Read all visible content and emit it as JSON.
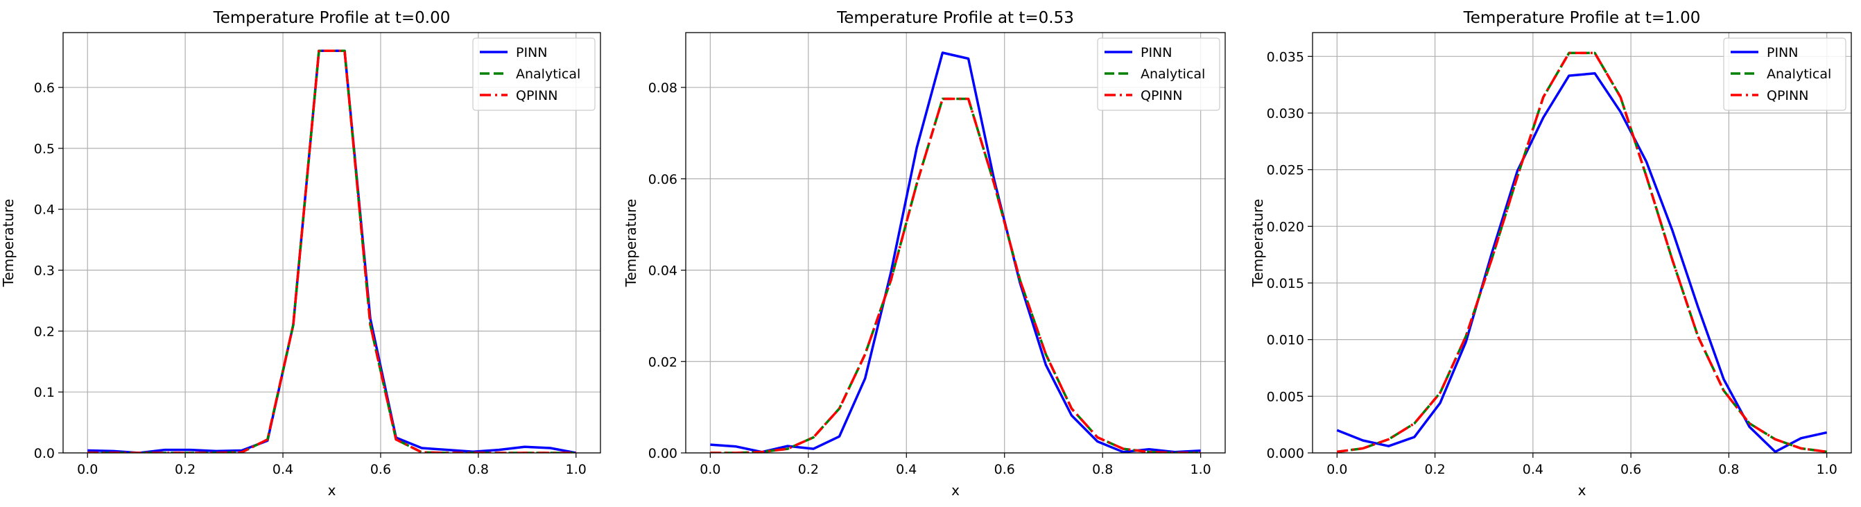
{
  "colors": {
    "PINN": "#0000ff",
    "Analytical": "#008000",
    "QPINN": "#ff0000",
    "grid": "#b0b0b0"
  },
  "chart_data": [
    {
      "type": "line",
      "title": "Temperature Profile at t=0.00",
      "xlabel": "x",
      "ylabel": "Temperature",
      "xlim": [
        -0.05,
        1.05
      ],
      "ylim": [
        0,
        0.69
      ],
      "xticks": [
        "0.0",
        "0.2",
        "0.4",
        "0.6",
        "0.8",
        "1.0"
      ],
      "yticks": [
        "0.0",
        "0.1",
        "0.2",
        "0.3",
        "0.4",
        "0.5",
        "0.6"
      ],
      "grid": true,
      "legend": "top-right",
      "x": [
        0.0,
        0.0526,
        0.1053,
        0.1579,
        0.2105,
        0.2632,
        0.3158,
        0.3684,
        0.4211,
        0.4737,
        0.5263,
        0.5789,
        0.6316,
        0.6842,
        0.7368,
        0.7895,
        0.8421,
        0.8947,
        0.9474,
        1.0
      ],
      "series": [
        {
          "name": "PINN",
          "style": "solid",
          "values": [
            0.004,
            0.003,
            0.0,
            0.005,
            0.005,
            0.003,
            0.004,
            0.02,
            0.21,
            0.66,
            0.66,
            0.22,
            0.025,
            0.008,
            0.005,
            0.002,
            0.005,
            0.01,
            0.008,
            0.0
          ]
        },
        {
          "name": "Analytical",
          "style": "dashed",
          "values": [
            0.0,
            0.0,
            0.0,
            0.0,
            0.0,
            0.0,
            0.001,
            0.022,
            0.21,
            0.66,
            0.66,
            0.21,
            0.022,
            0.001,
            0.0,
            0.0,
            0.0,
            0.0,
            0.0,
            0.0
          ]
        },
        {
          "name": "QPINN",
          "style": "dashdot",
          "values": [
            0.0,
            0.0,
            0.0,
            0.0,
            0.0,
            0.0,
            0.001,
            0.022,
            0.21,
            0.66,
            0.66,
            0.21,
            0.022,
            0.001,
            0.0,
            0.0,
            0.0,
            0.0,
            0.0,
            0.0
          ]
        }
      ]
    },
    {
      "type": "line",
      "title": "Temperature Profile at t=0.53",
      "xlabel": "x",
      "ylabel": "Temperature",
      "xlim": [
        -0.05,
        1.05
      ],
      "ylim": [
        0,
        0.092
      ],
      "xticks": [
        "0.0",
        "0.2",
        "0.4",
        "0.6",
        "0.8",
        "1.0"
      ],
      "yticks": [
        "0.00",
        "0.02",
        "0.04",
        "0.06",
        "0.08"
      ],
      "grid": true,
      "legend": "top-right",
      "x": [
        0.0,
        0.0526,
        0.1053,
        0.1579,
        0.2105,
        0.2632,
        0.3158,
        0.3684,
        0.4211,
        0.4737,
        0.5263,
        0.5789,
        0.6316,
        0.6842,
        0.7368,
        0.7895,
        0.8421,
        0.8947,
        0.9474,
        1.0
      ],
      "series": [
        {
          "name": "PINN",
          "style": "solid",
          "values": [
            0.0018,
            0.0014,
            0.0002,
            0.0015,
            0.0009,
            0.0036,
            0.0163,
            0.0395,
            0.0668,
            0.0876,
            0.0863,
            0.0598,
            0.0372,
            0.0193,
            0.0082,
            0.0025,
            0.0002,
            0.0008,
            0.0002,
            0.0005
          ]
        },
        {
          "name": "Analytical",
          "style": "dashed",
          "values": [
            0.0,
            0.0,
            0.0002,
            0.0009,
            0.0034,
            0.0097,
            0.0216,
            0.0378,
            0.0589,
            0.0775,
            0.0775,
            0.0589,
            0.0378,
            0.0216,
            0.0097,
            0.0034,
            0.0009,
            0.0002,
            0.0,
            0.0
          ]
        },
        {
          "name": "QPINN",
          "style": "dashdot",
          "values": [
            0.0,
            0.0,
            0.0002,
            0.0009,
            0.0034,
            0.0097,
            0.0216,
            0.0378,
            0.0589,
            0.0775,
            0.0775,
            0.0589,
            0.0378,
            0.0216,
            0.0097,
            0.0034,
            0.0009,
            0.0002,
            0.0,
            0.0
          ]
        }
      ]
    },
    {
      "type": "line",
      "title": "Temperature Profile at t=1.00",
      "xlabel": "x",
      "ylabel": "Temperature",
      "xlim": [
        -0.05,
        1.05
      ],
      "ylim": [
        0,
        0.0371
      ],
      "xticks": [
        "0.0",
        "0.2",
        "0.4",
        "0.6",
        "0.8",
        "1.0"
      ],
      "yticks": [
        "0.000",
        "0.005",
        "0.010",
        "0.015",
        "0.020",
        "0.025",
        "0.030",
        "0.035"
      ],
      "grid": true,
      "legend": "top-right",
      "x": [
        0.0,
        0.0526,
        0.1053,
        0.1579,
        0.2105,
        0.2632,
        0.3158,
        0.3684,
        0.4211,
        0.4737,
        0.5263,
        0.5789,
        0.6316,
        0.6842,
        0.7368,
        0.7895,
        0.8421,
        0.8947,
        0.9474,
        1.0
      ],
      "series": [
        {
          "name": "PINN",
          "style": "solid",
          "values": [
            0.002,
            0.0011,
            0.0006,
            0.0014,
            0.0044,
            0.0098,
            0.0176,
            0.0249,
            0.0296,
            0.0333,
            0.0335,
            0.0301,
            0.0257,
            0.0197,
            0.0129,
            0.0065,
            0.0023,
            0.0001,
            0.0013,
            0.0018
          ]
        },
        {
          "name": "Analytical",
          "style": "dashed",
          "values": [
            0.0001,
            0.0004,
            0.0012,
            0.0026,
            0.0053,
            0.0103,
            0.0171,
            0.0244,
            0.0314,
            0.0353,
            0.0353,
            0.0314,
            0.0244,
            0.0171,
            0.0103,
            0.0055,
            0.0026,
            0.0012,
            0.0004,
            0.0001
          ]
        },
        {
          "name": "QPINN",
          "style": "dashdot",
          "values": [
            0.0001,
            0.0004,
            0.0012,
            0.0026,
            0.0053,
            0.0103,
            0.0171,
            0.0244,
            0.0314,
            0.0353,
            0.0353,
            0.0314,
            0.0244,
            0.0171,
            0.0103,
            0.0055,
            0.0026,
            0.0012,
            0.0004,
            0.0001
          ]
        }
      ]
    }
  ]
}
